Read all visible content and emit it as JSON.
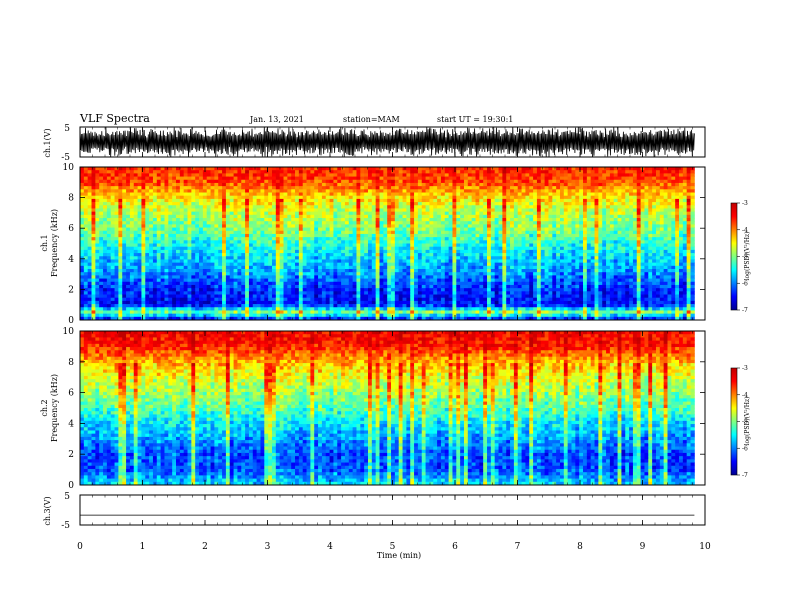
{
  "header": {
    "title": "VLF Spectra",
    "date": "Jan. 13, 2021",
    "station": "station=MAM",
    "start": "start UT =  19:30:1"
  },
  "chart_data": [
    {
      "type": "line",
      "panel": "ch1-waveform",
      "ylabel": "ch.1(V)",
      "yticks": [
        "5",
        "-5"
      ],
      "ylim": [
        -5,
        5
      ],
      "x_range_min": [
        0,
        9.83
      ],
      "trace": "dense noisy waveform saturating near ±5 V"
    },
    {
      "type": "heatmap",
      "panel": "ch1-spectrogram",
      "ylabel_line1": "ch.1",
      "ylabel_line2": "Frequency (kHz)",
      "yticks": [
        "0",
        "2",
        "4",
        "6",
        "8",
        "10"
      ],
      "ylim": [
        0,
        10
      ],
      "xlim": [
        0,
        9.83
      ],
      "colorbar": {
        "label": "log(PSD)(V²/Hz)",
        "ticks": [
          "-3",
          "-4",
          "-5",
          "-6",
          "-7"
        ],
        "range": [
          -7,
          -3
        ]
      },
      "mean_logpsd_profile": [
        {
          "f": 0.0,
          "v": -6.6
        },
        {
          "f": 0.5,
          "v": -5.0
        },
        {
          "f": 1.0,
          "v": -6.5
        },
        {
          "f": 2.0,
          "v": -6.4
        },
        {
          "f": 3.0,
          "v": -6.0
        },
        {
          "f": 4.0,
          "v": -5.7
        },
        {
          "f": 5.0,
          "v": -5.4
        },
        {
          "f": 6.0,
          "v": -5.0
        },
        {
          "f": 7.0,
          "v": -4.8
        },
        {
          "f": 8.0,
          "v": -4.4
        },
        {
          "f": 9.0,
          "v": -3.8
        },
        {
          "f": 10.0,
          "v": -3.6
        }
      ]
    },
    {
      "type": "heatmap",
      "panel": "ch2-spectrogram",
      "ylabel_line1": "ch.2",
      "ylabel_line2": "Frequency (kHz)",
      "yticks": [
        "0",
        "2",
        "4",
        "6",
        "8",
        "10"
      ],
      "ylim": [
        0,
        10
      ],
      "xlim": [
        0,
        9.83
      ],
      "colorbar": {
        "label": "log(PSD)(V²/Hz)",
        "ticks": [
          "-3",
          "-4",
          "-5",
          "-6",
          "-7"
        ],
        "range": [
          -7,
          -3
        ]
      },
      "mean_logpsd_profile": [
        {
          "f": 0.0,
          "v": -5.6
        },
        {
          "f": 1.0,
          "v": -6.2
        },
        {
          "f": 2.0,
          "v": -6.2
        },
        {
          "f": 3.0,
          "v": -5.9
        },
        {
          "f": 4.0,
          "v": -5.6
        },
        {
          "f": 5.0,
          "v": -5.2
        },
        {
          "f": 6.0,
          "v": -4.9
        },
        {
          "f": 7.0,
          "v": -4.6
        },
        {
          "f": 8.0,
          "v": -4.2
        },
        {
          "f": 9.0,
          "v": -3.6
        },
        {
          "f": 10.0,
          "v": -3.4
        }
      ]
    },
    {
      "type": "line",
      "panel": "ch3-waveform",
      "ylabel": "ch.3(V)",
      "yticks": [
        "5",
        "-5"
      ],
      "ylim": [
        -5,
        5
      ],
      "x": [
        0,
        9.83
      ],
      "y": [
        -1.7,
        -1.7
      ]
    }
  ],
  "xaxis": {
    "label": "Time (min)",
    "ticks": [
      "0",
      "1",
      "2",
      "3",
      "4",
      "5",
      "6",
      "7",
      "8",
      "9",
      "10"
    ],
    "range": [
      0,
      10
    ]
  },
  "colors": {
    "colormap": [
      "#000090",
      "#0000ff",
      "#0080ff",
      "#00ffff",
      "#80ff80",
      "#ffff00",
      "#ff8000",
      "#ff0000",
      "#c00000"
    ],
    "axes": "#000000",
    "background": "#ffffff"
  }
}
